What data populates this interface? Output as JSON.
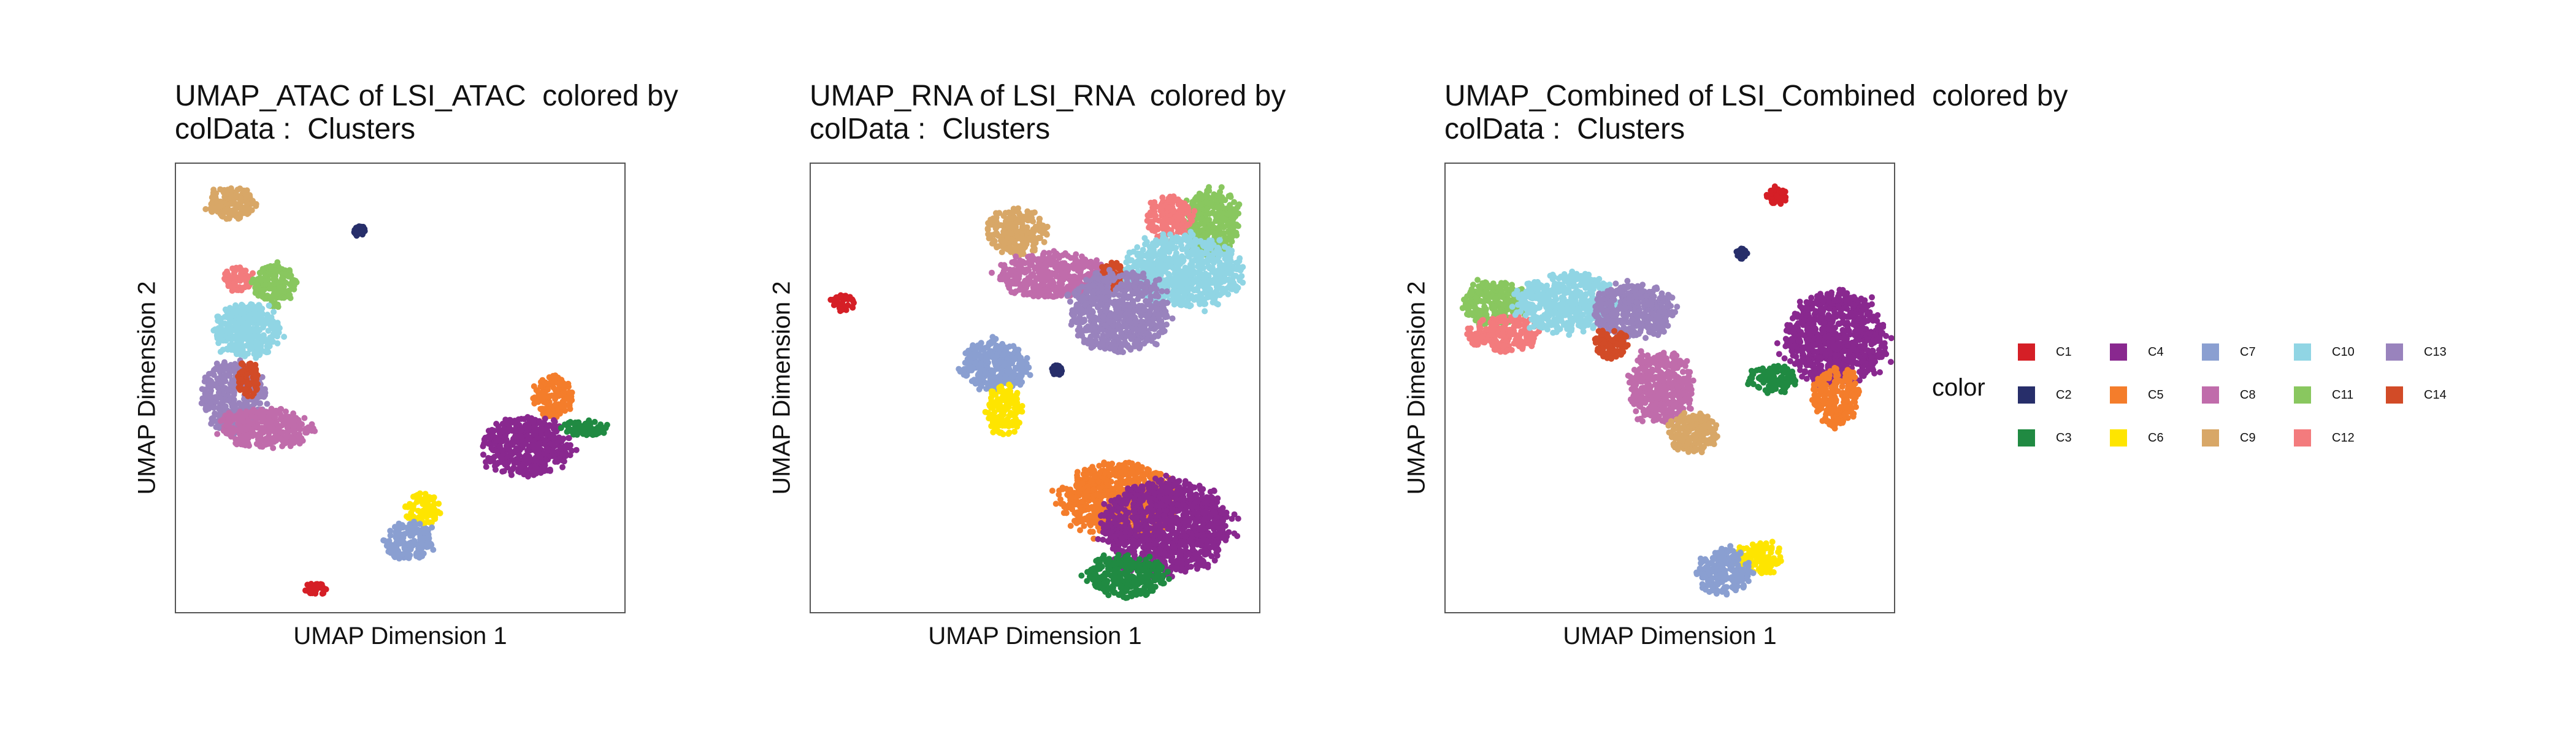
{
  "chart_data": [
    {
      "type": "scatter",
      "title": "UMAP_ATAC of LSI_ATAC  colored by\ncolData :  Clusters",
      "xlabel": "UMAP Dimension 1",
      "ylabel": "UMAP Dimension 2",
      "xlim": [
        0,
        10
      ],
      "ylim": [
        0,
        10
      ],
      "grid": false,
      "clusters": [
        {
          "name": "C9",
          "cx": 1.2,
          "cy": 9.1,
          "rx": 0.55,
          "ry": 0.35
        },
        {
          "name": "C2",
          "cx": 4.1,
          "cy": 8.5,
          "rx": 0.12,
          "ry": 0.12
        },
        {
          "name": "C12",
          "cx": 1.4,
          "cy": 7.4,
          "rx": 0.35,
          "ry": 0.3
        },
        {
          "name": "C11",
          "cx": 2.2,
          "cy": 7.3,
          "rx": 0.5,
          "ry": 0.45
        },
        {
          "name": "C10",
          "cx": 1.6,
          "cy": 6.3,
          "rx": 0.75,
          "ry": 0.6
        },
        {
          "name": "C13",
          "cx": 1.3,
          "cy": 4.8,
          "rx": 0.7,
          "ry": 0.8
        },
        {
          "name": "C14",
          "cx": 1.6,
          "cy": 5.2,
          "rx": 0.25,
          "ry": 0.4
        },
        {
          "name": "C8",
          "cx": 2.0,
          "cy": 4.1,
          "rx": 1.0,
          "ry": 0.45
        },
        {
          "name": "C5",
          "cx": 8.4,
          "cy": 4.8,
          "rx": 0.45,
          "ry": 0.45
        },
        {
          "name": "C4",
          "cx": 7.8,
          "cy": 3.7,
          "rx": 1.0,
          "ry": 0.65
        },
        {
          "name": "C3",
          "cx": 9.1,
          "cy": 4.1,
          "rx": 0.55,
          "ry": 0.18
        },
        {
          "name": "C6",
          "cx": 5.5,
          "cy": 2.3,
          "rx": 0.4,
          "ry": 0.35
        },
        {
          "name": "C7",
          "cx": 5.2,
          "cy": 1.6,
          "rx": 0.55,
          "ry": 0.4
        },
        {
          "name": "C1",
          "cx": 3.1,
          "cy": 0.5,
          "rx": 0.25,
          "ry": 0.15
        }
      ]
    },
    {
      "type": "scatter",
      "title": "UMAP_RNA of LSI_RNA  colored by\ncolData :  Clusters",
      "xlabel": "UMAP Dimension 1",
      "ylabel": "UMAP Dimension 2",
      "xlim": [
        0,
        10
      ],
      "ylim": [
        0,
        10
      ],
      "grid": false,
      "clusters": [
        {
          "name": "C1",
          "cx": 0.7,
          "cy": 6.9,
          "rx": 0.25,
          "ry": 0.2
        },
        {
          "name": "C9",
          "cx": 4.6,
          "cy": 8.5,
          "rx": 0.65,
          "ry": 0.5
        },
        {
          "name": "C8",
          "cx": 5.4,
          "cy": 7.5,
          "rx": 1.2,
          "ry": 0.5
        },
        {
          "name": "C14",
          "cx": 6.7,
          "cy": 7.5,
          "rx": 0.3,
          "ry": 0.3
        },
        {
          "name": "C11",
          "cx": 8.9,
          "cy": 8.7,
          "rx": 0.65,
          "ry": 0.75
        },
        {
          "name": "C12",
          "cx": 8.0,
          "cy": 8.8,
          "rx": 0.5,
          "ry": 0.5
        },
        {
          "name": "C10",
          "cx": 8.3,
          "cy": 7.6,
          "rx": 1.3,
          "ry": 0.8
        },
        {
          "name": "C13",
          "cx": 6.9,
          "cy": 6.7,
          "rx": 1.1,
          "ry": 0.9
        },
        {
          "name": "C7",
          "cx": 4.1,
          "cy": 5.5,
          "rx": 0.75,
          "ry": 0.55
        },
        {
          "name": "C2",
          "cx": 5.5,
          "cy": 5.4,
          "rx": 0.12,
          "ry": 0.12
        },
        {
          "name": "C6",
          "cx": 4.3,
          "cy": 4.5,
          "rx": 0.4,
          "ry": 0.55
        },
        {
          "name": "C5",
          "cx": 6.9,
          "cy": 2.5,
          "rx": 1.3,
          "ry": 0.8
        },
        {
          "name": "C4",
          "cx": 7.9,
          "cy": 1.9,
          "rx": 1.4,
          "ry": 1.05
        },
        {
          "name": "C3",
          "cx": 7.0,
          "cy": 0.8,
          "rx": 0.9,
          "ry": 0.45
        }
      ]
    },
    {
      "type": "scatter",
      "title": "UMAP_Combined of LSI_Combined  colored by\ncolData :  Clusters",
      "xlabel": "UMAP Dimension 1",
      "ylabel": "UMAP Dimension 2",
      "xlim": [
        0,
        10
      ],
      "ylim": [
        0,
        10
      ],
      "grid": false,
      "clusters": [
        {
          "name": "C1",
          "cx": 7.4,
          "cy": 9.3,
          "rx": 0.25,
          "ry": 0.2
        },
        {
          "name": "C2",
          "cx": 6.6,
          "cy": 8.0,
          "rx": 0.12,
          "ry": 0.12
        },
        {
          "name": "C11",
          "cx": 1.1,
          "cy": 6.9,
          "rx": 0.7,
          "ry": 0.5
        },
        {
          "name": "C12",
          "cx": 1.3,
          "cy": 6.2,
          "rx": 0.8,
          "ry": 0.4
        },
        {
          "name": "C10",
          "cx": 2.7,
          "cy": 6.9,
          "rx": 1.1,
          "ry": 0.65
        },
        {
          "name": "C13",
          "cx": 4.2,
          "cy": 6.7,
          "rx": 0.9,
          "ry": 0.6
        },
        {
          "name": "C14",
          "cx": 3.7,
          "cy": 6.0,
          "rx": 0.4,
          "ry": 0.35
        },
        {
          "name": "C8",
          "cx": 4.8,
          "cy": 5.0,
          "rx": 0.7,
          "ry": 0.8
        },
        {
          "name": "C9",
          "cx": 5.5,
          "cy": 4.0,
          "rx": 0.55,
          "ry": 0.45
        },
        {
          "name": "C4",
          "cx": 8.7,
          "cy": 6.1,
          "rx": 1.1,
          "ry": 1.05
        },
        {
          "name": "C3",
          "cx": 7.3,
          "cy": 5.2,
          "rx": 0.55,
          "ry": 0.3
        },
        {
          "name": "C5",
          "cx": 8.7,
          "cy": 4.8,
          "rx": 0.5,
          "ry": 0.65
        },
        {
          "name": "C6",
          "cx": 7.0,
          "cy": 1.2,
          "rx": 0.5,
          "ry": 0.35
        },
        {
          "name": "C7",
          "cx": 6.2,
          "cy": 0.9,
          "rx": 0.6,
          "ry": 0.5
        }
      ]
    }
  ],
  "legend": {
    "title": "color",
    "placement": "right",
    "items": [
      {
        "label": "C1",
        "color": "#D51F26"
      },
      {
        "label": "C2",
        "color": "#272E6A"
      },
      {
        "label": "C3",
        "color": "#208A42"
      },
      {
        "label": "C4",
        "color": "#89288F"
      },
      {
        "label": "C5",
        "color": "#F47D2B"
      },
      {
        "label": "C6",
        "color": "#FEE500"
      },
      {
        "label": "C7",
        "color": "#8A9FD1"
      },
      {
        "label": "C8",
        "color": "#C06CAB"
      },
      {
        "label": "C9",
        "color": "#D8A767"
      },
      {
        "label": "C10",
        "color": "#90D5E4"
      },
      {
        "label": "C11",
        "color": "#89C75F"
      },
      {
        "label": "C12",
        "color": "#F37B7D"
      },
      {
        "label": "C13",
        "color": "#9983BD"
      },
      {
        "label": "C14",
        "color": "#D24B27"
      }
    ]
  }
}
